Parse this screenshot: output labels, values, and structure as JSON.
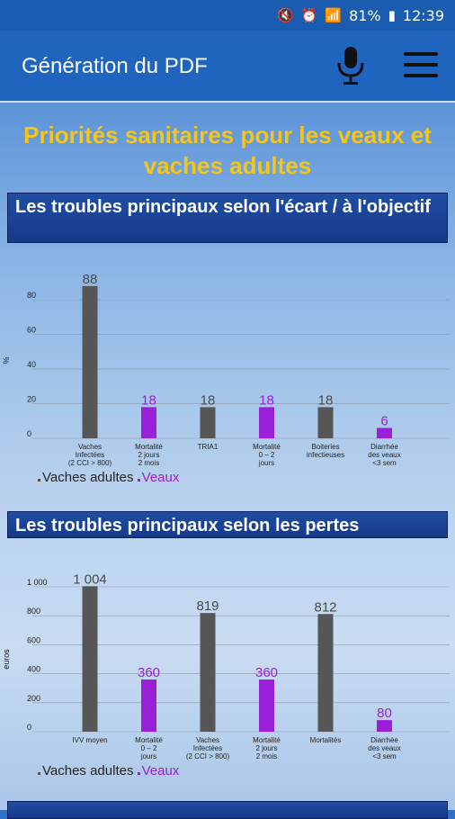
{
  "status_bar": {
    "battery": "81%",
    "time": "12:39"
  },
  "app_bar": {
    "title": "Génération du PDF",
    "mic_icon": "microphone-icon",
    "menu_icon": "hamburger-menu-icon"
  },
  "page": {
    "title": "Priorités sanitaires pour les veaux et vaches adultes"
  },
  "sections": [
    {
      "title": "Les troubles principaux selon l'écart / à l'objectif"
    },
    {
      "title": "Les troubles principaux selon les pertes"
    },
    {
      "title": ""
    }
  ],
  "colors": {
    "vaches": "#565656",
    "veaux": "#9a1fd9"
  },
  "chart_data": [
    {
      "type": "bar",
      "ylabel": "%",
      "ylim": [
        0,
        90
      ],
      "yticks": [
        "0",
        "20",
        "40",
        "60",
        "80"
      ],
      "categories": [
        [
          "Vaches",
          "Infectées",
          "(2 CCI > 800)"
        ],
        [
          "Mortalité",
          "2 jours",
          "2 mois"
        ],
        [
          "TRIA1"
        ],
        [
          "Mortalité",
          "0 – 2",
          "jours"
        ],
        [
          "Boiteries",
          "infectieuses"
        ],
        [
          "Diarrhée",
          "des veaux",
          "<3 sem"
        ]
      ],
      "values": [
        88,
        18,
        18,
        18,
        18,
        6
      ],
      "value_labels": [
        "88",
        "18",
        "18",
        "18",
        "18",
        "6"
      ],
      "series_of_bar": [
        "vaches",
        "veaux",
        "vaches",
        "veaux",
        "vaches",
        "veaux"
      ],
      "legend": [
        "Vaches adultes",
        "Veaux"
      ]
    },
    {
      "type": "bar",
      "ylabel": "euros",
      "ylim": [
        0,
        1000
      ],
      "yticks": [
        "0",
        "200",
        "400",
        "600",
        "800",
        "1 000"
      ],
      "categories": [
        [
          "IVV moyen"
        ],
        [
          "Mortalité",
          "0 – 2",
          "jours"
        ],
        [
          "Vaches",
          "Infectées",
          "(2 CCI > 800)"
        ],
        [
          "Mortalité",
          "2 jours",
          "2 mois"
        ],
        [
          "Mortalités"
        ],
        [
          "Diarrhée",
          "des veaux",
          "<3 sem"
        ]
      ],
      "values": [
        1004,
        360,
        819,
        360,
        812,
        80
      ],
      "value_labels": [
        "1 004",
        "360",
        "819",
        "360",
        "812",
        "80"
      ],
      "series_of_bar": [
        "vaches",
        "veaux",
        "vaches",
        "veaux",
        "vaches",
        "veaux"
      ],
      "legend": [
        "Vaches adultes",
        "Veaux"
      ]
    }
  ]
}
